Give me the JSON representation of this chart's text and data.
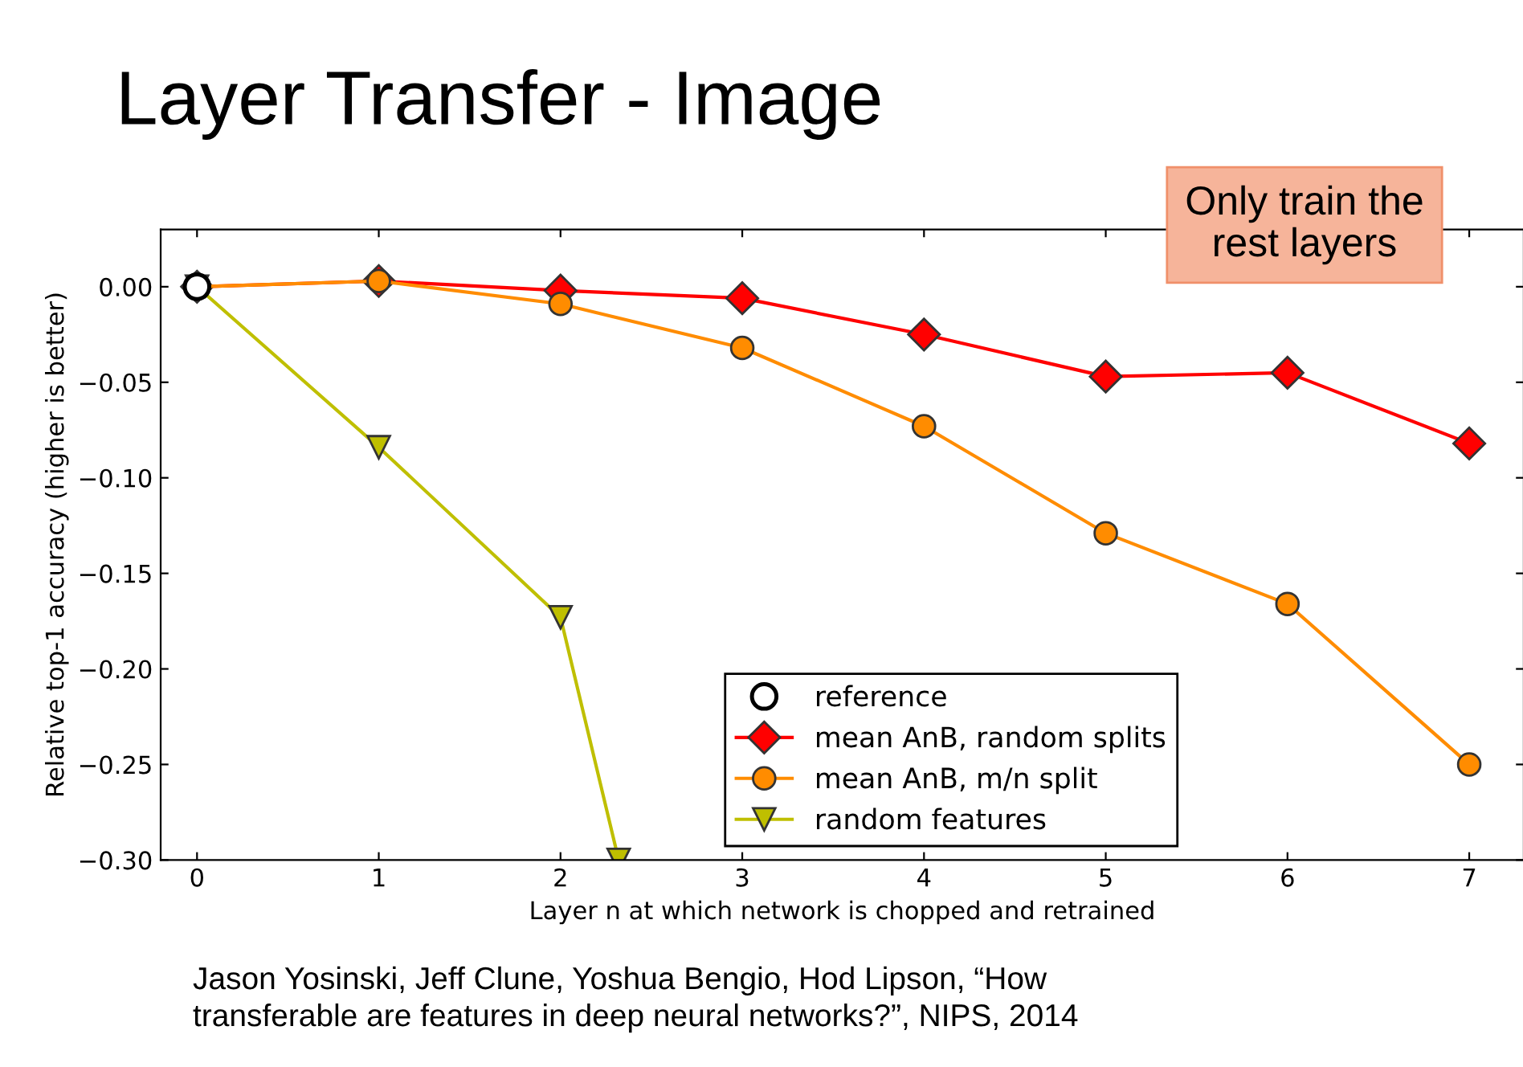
{
  "chart_data": {
    "type": "line",
    "title": "Layer Transfer - Image",
    "xlabel": "Layer n at which network is chopped and retrained",
    "ylabel": "Relative top-1 accuracy (higher is better)",
    "xlim": [
      -0.2,
      7.3
    ],
    "xticks": [
      0,
      1,
      2,
      3,
      4,
      5,
      6,
      7
    ],
    "ylim": [
      -0.3,
      0.03
    ],
    "yticks": [
      {
        "value": 0.0,
        "label": "0.00"
      },
      {
        "value": -0.05,
        "label": "−0.05"
      },
      {
        "value": -0.1,
        "label": "−0.10"
      },
      {
        "value": -0.15,
        "label": "−0.15"
      },
      {
        "value": -0.2,
        "label": "−0.20"
      },
      {
        "value": -0.25,
        "label": "−0.25"
      },
      {
        "value": -0.3,
        "label": "−0.30"
      }
    ],
    "grid": false,
    "legend": "bottom",
    "series": [
      {
        "name": "reference",
        "type": "scatter",
        "marker": "circle",
        "color": "#000000",
        "x": [
          0
        ],
        "values": [
          0.0
        ]
      },
      {
        "name": "mean AnB, random splits",
        "marker": "diamond",
        "color": "#ff0000",
        "x": [
          0,
          1,
          2,
          3,
          4,
          5,
          6,
          7
        ],
        "values": [
          0.0,
          0.003,
          -0.002,
          -0.006,
          -0.025,
          -0.047,
          -0.045,
          -0.082
        ]
      },
      {
        "name": "mean AnB, m/n split",
        "marker": "circle",
        "color": "#ff8c00",
        "x": [
          0,
          1,
          2,
          3,
          4,
          5,
          6,
          7
        ],
        "values": [
          0.0,
          0.003,
          -0.009,
          -0.032,
          -0.073,
          -0.129,
          -0.166,
          -0.25
        ]
      },
      {
        "name": "random features",
        "marker": "triangle",
        "color": "#bfbf00",
        "x": [
          0,
          1,
          2,
          2.32
        ],
        "values": [
          0.0,
          -0.084,
          -0.173,
          -0.3
        ]
      }
    ],
    "annotations": [
      "Only train the\nrest layers",
      "Jason Yosinski, Jeff Clune, Yoshua Bengio, Hod Lipson, “How\ntransferable are features in deep neural networks?”, NIPS, 2014"
    ]
  }
}
